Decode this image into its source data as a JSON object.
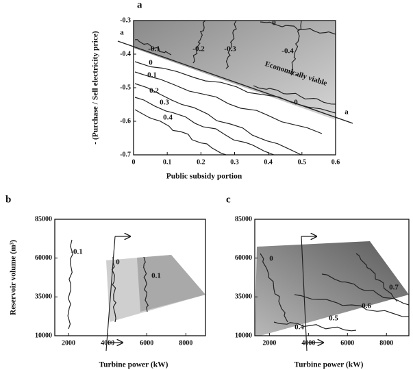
{
  "chart_data": [
    {
      "type": "contour",
      "panel_label": "a",
      "xlabel": "Public subsidy portion",
      "ylabel": "- (Purchase / Sell electricity price)",
      "xlim": [
        0,
        0.6
      ],
      "xticks": [
        0,
        0.1,
        0.2,
        0.3,
        0.4,
        0.5,
        0.6
      ],
      "ylim": [
        -0.7,
        -0.3
      ],
      "yticks": [
        -0.7,
        -0.6,
        -0.5,
        -0.4,
        -0.3
      ],
      "levels": [
        0,
        -0.1,
        -0.2,
        -0.3,
        -0.4,
        0,
        0.1,
        0.2,
        0.3,
        0.4,
        0
      ],
      "region_label": "Economically viable",
      "boundary_label": "a"
    },
    {
      "type": "contour",
      "panel_label": "b",
      "xlabel": "Turbine power (kW)",
      "ylabel": "Reservoir volume (m³)",
      "xlim": [
        1300,
        9000
      ],
      "xticks": [
        2000,
        4000,
        6000,
        8000
      ],
      "ylim": [
        10000,
        85000
      ],
      "yticks": [
        10000,
        35000,
        60000,
        85000
      ],
      "levels": [
        -0.1,
        0,
        0.1
      ]
    },
    {
      "type": "contour",
      "panel_label": "c",
      "xlabel": "Turbine power (kW)",
      "xlim": [
        1250,
        9150
      ],
      "xticks": [
        2000,
        4000,
        6000,
        8000
      ],
      "ylim": [
        10000,
        85000
      ],
      "yticks": [
        10000,
        35000,
        60000,
        85000
      ],
      "levels": [
        0,
        0.7,
        0.6,
        0.5,
        0.4
      ]
    }
  ]
}
